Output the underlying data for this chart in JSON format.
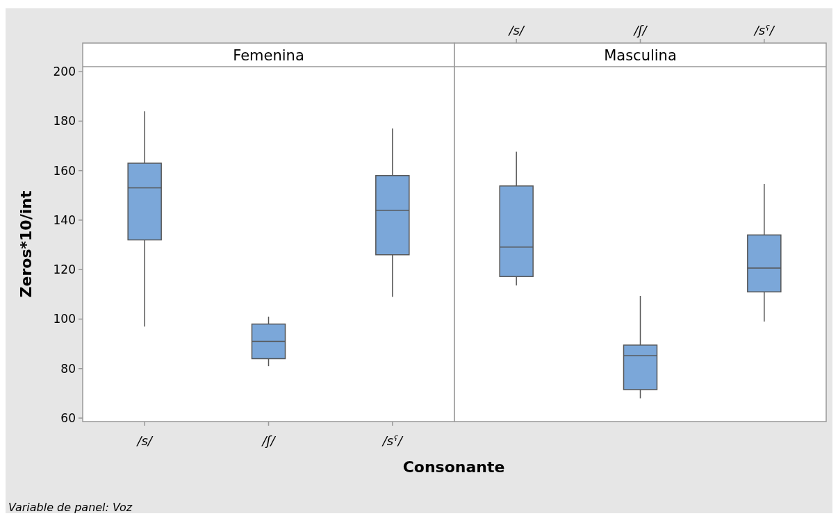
{
  "chart_data": [
    {
      "type": "box",
      "title": "Femenina",
      "xlabel": "Consonante",
      "ylabel": "Zeros*10/int",
      "annotations": [
        "Variable de panel: Voz"
      ],
      "categories": [
        "/s/",
        "/ʃ/",
        "/sˤ/"
      ],
      "color": "#7ba7d9",
      "ylim": [
        58.6,
        202
      ],
      "yticks": [
        60,
        80,
        100,
        120,
        140,
        160,
        180,
        200
      ],
      "grid": false,
      "boxes": [
        {
          "low": 97,
          "q1": 132,
          "median": 153,
          "q3": 163,
          "high": 184
        },
        {
          "low": 81,
          "q1": 84,
          "median": 91,
          "q3": 98,
          "high": 101
        },
        {
          "low": 109,
          "q1": 126,
          "median": 144,
          "q3": 158,
          "high": 177
        }
      ]
    },
    {
      "type": "box",
      "title": "Masculina",
      "categories": [
        "/s/",
        "/ʃ/",
        "/sˤ/"
      ],
      "color": "#7ba7d9",
      "ylim": [
        58.6,
        202
      ],
      "grid": false,
      "tick_labels": "x",
      "boxes": [
        {
          "low": 113.6,
          "q1": 117.2,
          "median": 129.1,
          "q3": 153.8,
          "high": 167.6
        },
        {
          "low": 68,
          "q1": 71.5,
          "median": 85.2,
          "q3": 89.5,
          "high": 109.4
        },
        {
          "low": 99,
          "q1": 111,
          "median": 120.6,
          "q3": 134,
          "high": 154.6
        }
      ]
    }
  ]
}
